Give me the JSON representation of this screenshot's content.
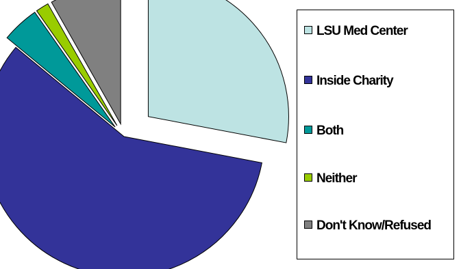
{
  "chart_data": {
    "type": "pie",
    "title": "",
    "slices": [
      {
        "label": "LSU Med Center",
        "value": 28.0,
        "color": "#BDE3E3",
        "exploded": true
      },
      {
        "label": "Inside Charity",
        "value": 58.0,
        "color": "#333399",
        "exploded": true
      },
      {
        "label": "Both",
        "value": 4.3,
        "color": "#009999",
        "exploded": true
      },
      {
        "label": "Neither",
        "value": 1.5,
        "color": "#99CC00",
        "exploded": true
      },
      {
        "label": "Don't Know/Refused",
        "value": 8.2,
        "color": "#808080",
        "exploded": true
      }
    ],
    "legend_position": "right"
  },
  "legend": {
    "items": [
      {
        "label": "LSU Med Center",
        "color": "#BDE3E3"
      },
      {
        "label": "Inside Charity",
        "color": "#333399"
      },
      {
        "label": "Both",
        "color": "#009999"
      },
      {
        "label": "Neither",
        "color": "#99CC00"
      },
      {
        "label": "Don't Know/Refused",
        "color": "#808080"
      }
    ]
  }
}
